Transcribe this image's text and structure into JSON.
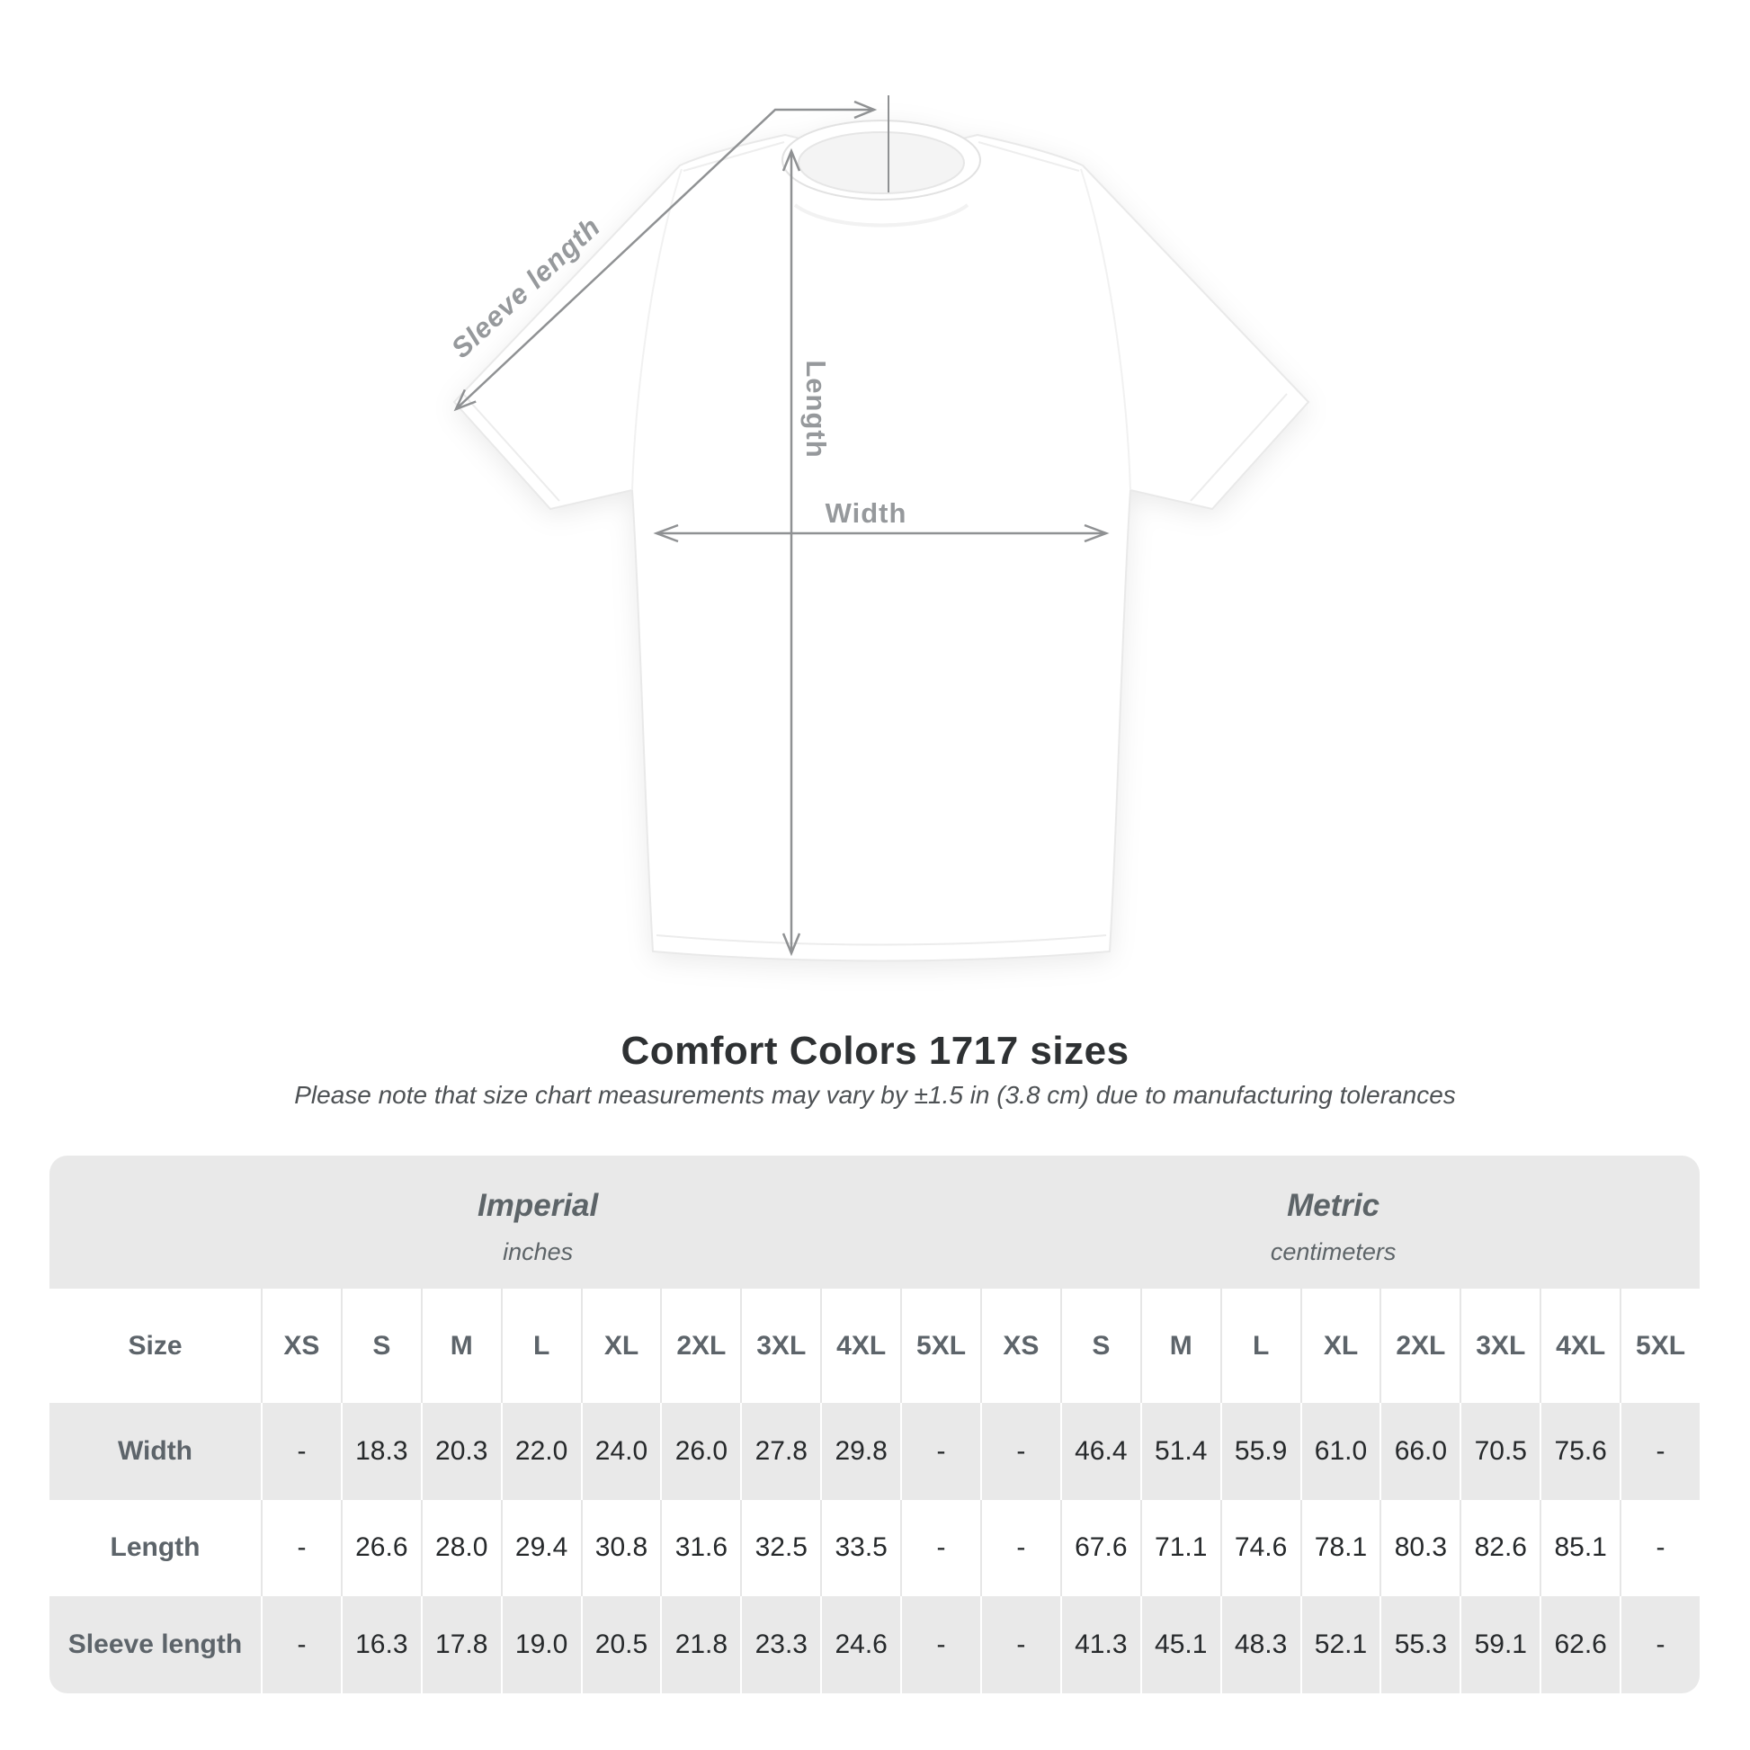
{
  "diagram": {
    "labels": {
      "sleeve_length": "Sleeve length",
      "length": "Length",
      "width": "Width"
    },
    "line_color": "#8f9193",
    "label_color": "#96999c"
  },
  "heading": {
    "title": "Comfort Colors 1717 sizes",
    "note": "Please note that size chart measurements may vary by ±1.5 in (3.8 cm) due to manufacturing tolerances"
  },
  "table": {
    "unit_sections": [
      {
        "name": "Imperial",
        "unit": "inches"
      },
      {
        "name": "Metric",
        "unit": "centimeters"
      }
    ],
    "size_header": "Size",
    "sizes": [
      "XS",
      "S",
      "M",
      "L",
      "XL",
      "2XL",
      "3XL",
      "4XL",
      "5XL"
    ],
    "rows": [
      {
        "label": "Width",
        "imperial": [
          "-",
          "18.3",
          "20.3",
          "22.0",
          "24.0",
          "26.0",
          "27.8",
          "29.8",
          "-"
        ],
        "metric": [
          "-",
          "46.4",
          "51.4",
          "55.9",
          "61.0",
          "66.0",
          "70.5",
          "75.6",
          "-"
        ]
      },
      {
        "label": "Length",
        "imperial": [
          "-",
          "26.6",
          "28.0",
          "29.4",
          "30.8",
          "31.6",
          "32.5",
          "33.5",
          "-"
        ],
        "metric": [
          "-",
          "67.6",
          "71.1",
          "74.6",
          "78.1",
          "80.3",
          "82.6",
          "85.1",
          "-"
        ]
      },
      {
        "label": "Sleeve length",
        "imperial": [
          "-",
          "16.3",
          "17.8",
          "19.0",
          "20.5",
          "21.8",
          "23.3",
          "24.6",
          "-"
        ],
        "metric": [
          "-",
          "41.3",
          "45.1",
          "48.3",
          "52.1",
          "55.3",
          "59.1",
          "62.6",
          "-"
        ]
      }
    ],
    "colors": {
      "band_gray": "#e9e9e9",
      "row_gray": "#e9e9e9",
      "separator_on_white": "#e6e6e6",
      "separator_on_gray": "#ffffff",
      "header_text": "#5d646a",
      "value_text": "#26292b"
    }
  },
  "chart_data": {
    "type": "table",
    "title": "Comfort Colors 1717 sizes",
    "columns": [
      "XS",
      "S",
      "M",
      "L",
      "XL",
      "2XL",
      "3XL",
      "4XL",
      "5XL"
    ],
    "sections": [
      "Imperial (inches)",
      "Metric (centimeters)"
    ],
    "rows": [
      {
        "label": "Width (in)",
        "values": [
          null,
          18.3,
          20.3,
          22.0,
          24.0,
          26.0,
          27.8,
          29.8,
          null
        ]
      },
      {
        "label": "Length (in)",
        "values": [
          null,
          26.6,
          28.0,
          29.4,
          30.8,
          31.6,
          32.5,
          33.5,
          null
        ]
      },
      {
        "label": "Sleeve length (in)",
        "values": [
          null,
          16.3,
          17.8,
          19.0,
          20.5,
          21.8,
          23.3,
          24.6,
          null
        ]
      },
      {
        "label": "Width (cm)",
        "values": [
          null,
          46.4,
          51.4,
          55.9,
          61.0,
          66.0,
          70.5,
          75.6,
          null
        ]
      },
      {
        "label": "Length (cm)",
        "values": [
          null,
          67.6,
          71.1,
          74.6,
          78.1,
          80.3,
          82.6,
          85.1,
          null
        ]
      },
      {
        "label": "Sleeve length (cm)",
        "values": [
          null,
          41.3,
          45.1,
          48.3,
          52.1,
          55.3,
          59.1,
          62.6,
          null
        ]
      }
    ]
  }
}
